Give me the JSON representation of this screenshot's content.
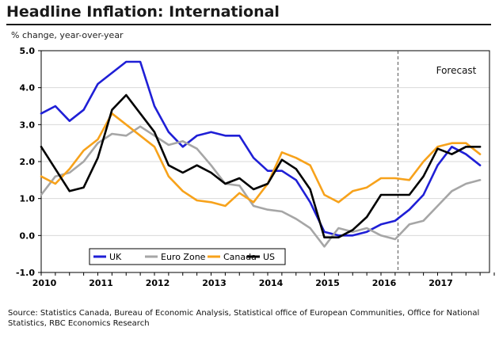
{
  "title": "Headline Inflation: International",
  "subtitle": "% change, year-over-year",
  "source": "Source: Statistics Canada, Bureau of Economic Analysis, Statistical office of European Communities, Office for National Statistics, RBC Economics Research",
  "chart_data": {
    "type": "line",
    "title": "Headline Inflation: International",
    "ylabel": "% change, year-over-year",
    "xlabel": "",
    "ylim": [
      -1.0,
      5.0
    ],
    "yticks": [
      "5.0",
      "4.0",
      "3.0",
      "2.0",
      "1.0",
      "0.0",
      "-1.0"
    ],
    "xticks": [
      "2010",
      "2011",
      "2012",
      "2013",
      "2014",
      "2015",
      "2016",
      "2017"
    ],
    "x": [
      "2010Q1",
      "2010Q2",
      "2010Q3",
      "2010Q4",
      "2011Q1",
      "2011Q2",
      "2011Q3",
      "2011Q4",
      "2012Q1",
      "2012Q2",
      "2012Q3",
      "2012Q4",
      "2013Q1",
      "2013Q2",
      "2013Q3",
      "2013Q4",
      "2014Q1",
      "2014Q2",
      "2014Q3",
      "2014Q4",
      "2015Q1",
      "2015Q2",
      "2015Q3",
      "2015Q4",
      "2016Q1",
      "2016Q2",
      "2016Q3",
      "2016Q4",
      "2017Q1",
      "2017Q2",
      "2017Q3",
      "2017Q4"
    ],
    "forecast_start": "2016Q3",
    "forecast_label": "Forecast",
    "grid": "horizontal",
    "legend_position": "bottom-left",
    "series": [
      {
        "name": "UK",
        "color": "#1f1fd6",
        "values": [
          3.3,
          3.5,
          3.1,
          3.4,
          4.1,
          4.4,
          4.7,
          4.7,
          3.5,
          2.8,
          2.4,
          2.7,
          2.8,
          2.7,
          2.7,
          2.1,
          1.75,
          1.75,
          1.5,
          0.9,
          0.1,
          0.0,
          0.0,
          0.1,
          0.3,
          0.4,
          0.7,
          1.1,
          1.9,
          2.4,
          2.2,
          1.9
        ]
      },
      {
        "name": "Euro Zone",
        "color": "#a6a6a6",
        "values": [
          1.1,
          1.6,
          1.7,
          2.0,
          2.5,
          2.75,
          2.7,
          2.95,
          2.7,
          2.45,
          2.55,
          2.35,
          1.9,
          1.4,
          1.35,
          0.8,
          0.7,
          0.65,
          0.45,
          0.2,
          -0.3,
          0.2,
          0.1,
          0.2,
          0.0,
          -0.1,
          0.3,
          0.4,
          0.8,
          1.2,
          1.4,
          1.5
        ]
      },
      {
        "name": "Canada",
        "color": "#f7a21b",
        "values": [
          1.6,
          1.4,
          1.8,
          2.3,
          2.6,
          3.3,
          3.0,
          2.7,
          2.4,
          1.6,
          1.2,
          0.95,
          0.9,
          0.8,
          1.15,
          0.9,
          1.4,
          2.25,
          2.1,
          1.9,
          1.1,
          0.9,
          1.2,
          1.3,
          1.55,
          1.55,
          1.5,
          2.0,
          2.4,
          2.5,
          2.5,
          2.2
        ]
      },
      {
        "name": "US",
        "color": "#000000",
        "values": [
          2.4,
          1.8,
          1.2,
          1.3,
          2.1,
          3.4,
          3.8,
          3.3,
          2.8,
          1.9,
          1.7,
          1.9,
          1.7,
          1.4,
          1.55,
          1.25,
          1.4,
          2.05,
          1.8,
          1.25,
          -0.05,
          -0.05,
          0.15,
          0.5,
          1.1,
          1.1,
          1.1,
          1.6,
          2.35,
          2.2,
          2.4,
          2.4
        ]
      }
    ]
  }
}
